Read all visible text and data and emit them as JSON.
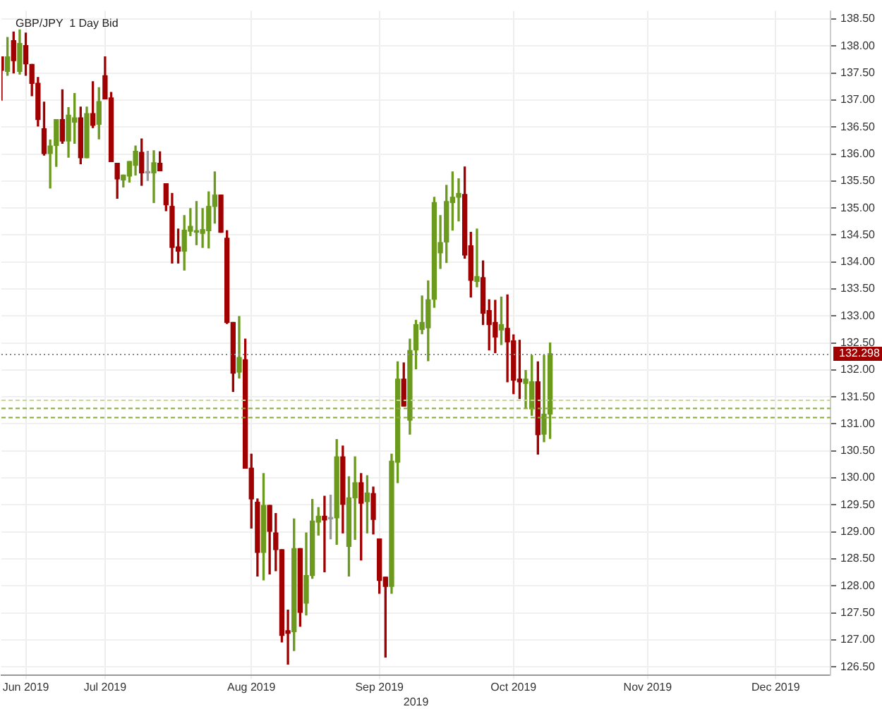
{
  "chart_data": {
    "type": "candlestick",
    "title": "GBP/JPY  1 Day Bid",
    "xlabel": "2019",
    "categories": [
      null,
      null,
      null,
      null,
      "Jun 2019",
      null,
      null,
      null,
      null,
      null,
      null,
      null,
      null,
      null,
      null,
      null,
      null,
      "Jul 2019",
      null,
      null,
      null,
      null,
      null,
      null,
      null,
      null,
      null,
      null,
      null,
      null,
      null,
      null,
      null,
      null,
      null,
      null,
      null,
      null,
      null,
      null,
      null,
      "Aug 2019",
      null,
      null,
      null,
      null,
      null,
      null,
      null,
      null,
      null,
      null,
      null,
      null,
      null,
      null,
      null,
      null,
      null,
      null,
      null,
      null,
      "Sep 2019",
      null,
      null,
      null,
      null,
      null,
      null,
      null,
      null,
      null,
      null,
      null,
      null,
      null,
      null,
      null,
      null,
      null,
      null,
      null,
      null,
      null,
      "Oct 2019",
      null,
      null,
      null,
      null,
      null,
      null,
      null,
      null,
      null,
      null,
      null,
      null,
      null,
      null,
      null,
      null,
      null,
      null,
      null,
      null,
      null,
      "Nov 2019",
      null,
      null,
      null,
      null,
      null,
      null,
      null,
      null,
      null,
      null,
      null,
      null,
      null,
      null,
      null,
      null,
      null,
      null,
      null,
      null,
      "Dec 2019",
      null,
      null,
      null,
      null,
      null,
      null,
      null,
      null,
      null
    ],
    "ohlc": [
      [
        137.8,
        137.8,
        137.0,
        137.55
      ],
      [
        137.53,
        138.16,
        137.46,
        137.8
      ],
      [
        138.1,
        138.26,
        137.5,
        137.73
      ],
      [
        137.53,
        138.3,
        137.48,
        138.05
      ],
      [
        138.01,
        138.24,
        137.46,
        137.67
      ],
      [
        137.66,
        137.66,
        137.08,
        137.31
      ],
      [
        137.31,
        137.42,
        136.52,
        136.64
      ],
      [
        136.47,
        136.96,
        135.98,
        136.01
      ],
      [
        136.01,
        136.26,
        135.37,
        136.15
      ],
      [
        136.16,
        136.64,
        135.77,
        136.64
      ],
      [
        136.64,
        137.19,
        136.2,
        136.24
      ],
      [
        136.24,
        136.86,
        135.94,
        136.72
      ],
      [
        136.59,
        137.12,
        136.2,
        136.67
      ],
      [
        136.67,
        136.87,
        135.82,
        135.93
      ],
      [
        135.93,
        136.87,
        135.93,
        136.75
      ],
      [
        136.75,
        137.34,
        136.49,
        136.53
      ],
      [
        136.55,
        137.23,
        136.28,
        136.97
      ],
      [
        137.45,
        137.8,
        137.02,
        137.02
      ],
      [
        137.04,
        137.14,
        135.86,
        135.86
      ],
      [
        135.83,
        135.83,
        135.18,
        135.54
      ],
      [
        135.52,
        135.61,
        135.39,
        135.61
      ],
      [
        135.59,
        135.86,
        135.48,
        135.86
      ],
      [
        135.79,
        136.15,
        135.61,
        136.05
      ],
      [
        136.03,
        136.28,
        135.42,
        135.65
      ],
      [
        135.65,
        136.05,
        135.51,
        135.65
      ],
      [
        135.65,
        136.06,
        135.1,
        135.84
      ],
      [
        135.83,
        136.04,
        135.69,
        135.69
      ],
      [
        135.45,
        135.45,
        134.95,
        135.06
      ],
      [
        135.03,
        135.27,
        133.98,
        134.27
      ],
      [
        134.28,
        134.61,
        133.98,
        134.2
      ],
      [
        134.2,
        134.86,
        133.85,
        134.59
      ],
      [
        134.57,
        134.99,
        134.49,
        134.66
      ],
      [
        134.55,
        135.12,
        134.32,
        134.58
      ],
      [
        134.53,
        134.99,
        134.27,
        134.6
      ],
      [
        134.58,
        135.3,
        134.26,
        135.03
      ],
      [
        135.03,
        135.67,
        134.72,
        135.24
      ],
      [
        135.24,
        135.24,
        134.55,
        134.55
      ],
      [
        134.44,
        134.58,
        132.86,
        132.88
      ],
      [
        132.88,
        132.88,
        131.6,
        131.94
      ],
      [
        131.96,
        132.99,
        131.85,
        132.23
      ],
      [
        132.19,
        132.57,
        130.18,
        130.18
      ],
      [
        130.18,
        130.44,
        129.07,
        129.61
      ],
      [
        129.55,
        129.61,
        128.18,
        128.62
      ],
      [
        128.62,
        130.08,
        128.11,
        129.49
      ],
      [
        129.49,
        129.49,
        128.22,
        129.01
      ],
      [
        128.98,
        129.34,
        128.28,
        128.67
      ],
      [
        128.67,
        128.67,
        126.96,
        127.08
      ],
      [
        127.17,
        127.55,
        126.55,
        127.12
      ],
      [
        127.15,
        129.24,
        126.8,
        128.69
      ],
      [
        128.69,
        128.69,
        127.25,
        127.51
      ],
      [
        127.68,
        128.98,
        127.46,
        128.19
      ],
      [
        128.19,
        129.6,
        128.14,
        129.2
      ],
      [
        129.18,
        129.45,
        128.94,
        129.29
      ],
      [
        129.29,
        129.66,
        128.26,
        129.22
      ],
      [
        129.24,
        129.68,
        128.87,
        129.24
      ],
      [
        129.26,
        130.71,
        128.77,
        130.39
      ],
      [
        130.39,
        130.59,
        128.98,
        129.51
      ],
      [
        128.73,
        130.02,
        128.18,
        129.63
      ],
      [
        129.63,
        130.39,
        128.86,
        129.91
      ],
      [
        129.91,
        130.08,
        128.48,
        129.53
      ],
      [
        129.56,
        130.04,
        128.98,
        129.72
      ],
      [
        129.71,
        129.83,
        128.96,
        129.23
      ],
      [
        128.87,
        128.87,
        127.86,
        128.1
      ],
      [
        128.16,
        128.16,
        126.68,
        127.99
      ],
      [
        127.99,
        130.44,
        127.86,
        130.31
      ],
      [
        130.29,
        132.15,
        129.91,
        131.83
      ],
      [
        131.83,
        132.13,
        131.33,
        131.33
      ],
      [
        131.07,
        132.57,
        130.81,
        132.36
      ],
      [
        132.37,
        132.92,
        132.02,
        132.84
      ],
      [
        132.75,
        133.37,
        132.67,
        132.88
      ],
      [
        132.78,
        133.65,
        132.17,
        133.3
      ],
      [
        133.31,
        135.2,
        133.16,
        135.1
      ],
      [
        134.17,
        134.86,
        133.88,
        134.36
      ],
      [
        134.37,
        135.42,
        133.99,
        135.12
      ],
      [
        135.1,
        135.67,
        134.59,
        135.2
      ],
      [
        135.2,
        135.54,
        134.76,
        135.27
      ],
      [
        135.25,
        135.76,
        134.07,
        134.13
      ],
      [
        134.3,
        134.55,
        133.35,
        133.66
      ],
      [
        133.64,
        134.61,
        133.54,
        133.73
      ],
      [
        133.71,
        134.02,
        132.84,
        133.05
      ],
      [
        133.1,
        133.3,
        132.37,
        132.84
      ],
      [
        132.88,
        133.29,
        132.32,
        132.61
      ],
      [
        132.74,
        133.35,
        132.47,
        132.84
      ],
      [
        132.77,
        133.39,
        131.78,
        132.52
      ],
      [
        132.54,
        132.65,
        131.56,
        131.81
      ],
      [
        131.83,
        132.55,
        131.47,
        131.78
      ],
      [
        131.75,
        131.99,
        131.29,
        131.83
      ],
      [
        131.28,
        132.27,
        131.16,
        131.78
      ],
      [
        131.78,
        132.15,
        130.44,
        130.8
      ],
      [
        130.81,
        132.27,
        130.67,
        131.18
      ],
      [
        131.18,
        132.5,
        130.73,
        132.3
      ],
      null,
      null,
      null,
      null,
      null,
      null,
      null,
      null,
      null,
      null,
      null,
      null,
      null,
      null,
      null,
      null,
      null,
      null,
      null,
      null,
      null,
      null,
      null,
      null,
      null,
      null,
      null,
      null,
      null,
      null,
      null,
      null,
      null,
      null,
      null,
      null,
      null,
      null,
      null,
      null,
      null,
      null,
      null,
      null,
      null,
      null
    ],
    "colors": [
      "#a00000",
      "#6b9a1e",
      "#a00000",
      "#6b9a1e",
      "#a00000",
      "#a00000",
      "#a00000",
      "#a00000",
      "#6b9a1e",
      "#6b9a1e",
      "#a00000",
      "#6b9a1e",
      "#6b9a1e",
      "#a00000",
      "#6b9a1e",
      "#a00000",
      "#6b9a1e",
      "#a00000",
      "#a00000",
      "#a00000",
      "#6b9a1e",
      "#6b9a1e",
      "#6b9a1e",
      "#a00000",
      "#999999",
      "#6b9a1e",
      "#a00000",
      "#a00000",
      "#a00000",
      "#a00000",
      "#6b9a1e",
      "#6b9a1e",
      "#6b9a1e",
      "#6b9a1e",
      "#6b9a1e",
      "#6b9a1e",
      "#a00000",
      "#a00000",
      "#a00000",
      "#6b9a1e",
      "#a00000",
      "#a00000",
      "#a00000",
      "#6b9a1e",
      "#a00000",
      "#a00000",
      "#a00000",
      "#a00000",
      "#6b9a1e",
      "#a00000",
      "#6b9a1e",
      "#6b9a1e",
      "#6b9a1e",
      "#a00000",
      "#999999",
      "#6b9a1e",
      "#a00000",
      "#6b9a1e",
      "#6b9a1e",
      "#a00000",
      "#6b9a1e",
      "#a00000",
      "#a00000",
      "#a00000",
      "#6b9a1e",
      "#6b9a1e",
      "#a00000",
      "#6b9a1e",
      "#6b9a1e",
      "#6b9a1e",
      "#6b9a1e",
      "#6b9a1e",
      "#6b9a1e",
      "#6b9a1e",
      "#6b9a1e",
      "#6b9a1e",
      "#a00000",
      "#a00000",
      "#6b9a1e",
      "#a00000",
      "#a00000",
      "#a00000",
      "#6b9a1e",
      "#a00000",
      "#a00000",
      "#a00000",
      "#6b9a1e",
      "#6b9a1e",
      "#a00000",
      "#6b9a1e",
      "#6b9a1e",
      null,
      null,
      null,
      null,
      null,
      null,
      null,
      null,
      null,
      null,
      null,
      null,
      null,
      null,
      null,
      null,
      null,
      null,
      null,
      null,
      null,
      null,
      null,
      null,
      null,
      null,
      null,
      null,
      null,
      null,
      null,
      null,
      null,
      null,
      null,
      null,
      null,
      null,
      null,
      null,
      null,
      null,
      null,
      null,
      null,
      null
    ],
    "ylim": [
      126.35,
      138.65
    ],
    "yticks": [
      {
        "value": 126.5,
        "label": "126.50"
      },
      {
        "value": 127,
        "label": "127.00"
      },
      {
        "value": 127.5,
        "label": "127.50"
      },
      {
        "value": 128,
        "label": "128.00"
      },
      {
        "value": 128.5,
        "label": "128.50"
      },
      {
        "value": 129,
        "label": "129.00"
      },
      {
        "value": 129.5,
        "label": "129.50"
      },
      {
        "value": 130,
        "label": "130.00"
      },
      {
        "value": 130.5,
        "label": "130.50"
      },
      {
        "value": 131,
        "label": "131.00"
      },
      {
        "value": 131.5,
        "label": "131.50"
      },
      {
        "value": 132,
        "label": "132.00"
      },
      {
        "value": 132.5,
        "label": "132.50"
      },
      {
        "value": 133,
        "label": "133.00"
      },
      {
        "value": 133.5,
        "label": "133.50"
      },
      {
        "value": 134,
        "label": "134.00"
      },
      {
        "value": 134.5,
        "label": "134.50"
      },
      {
        "value": 135,
        "label": "135.00"
      },
      {
        "value": 135.5,
        "label": "135.50"
      },
      {
        "value": 136,
        "label": "136.00"
      },
      {
        "value": 136.5,
        "label": "136.50"
      },
      {
        "value": 137,
        "label": "137.00"
      },
      {
        "value": 137.5,
        "label": "137.50"
      },
      {
        "value": 138,
        "label": "138.00"
      },
      {
        "value": 138.5,
        "label": "138.50"
      }
    ],
    "grid": true,
    "ref_lines": [
      {
        "axis": "y",
        "value": 132.298,
        "label": "132.298",
        "color": "#888888",
        "line_style": "dotted"
      },
      {
        "axis": "y",
        "value": 131.45,
        "color": "#c5d89a",
        "line_style": "dashed"
      },
      {
        "axis": "y",
        "value": 131.3,
        "color": "#8aaa3c",
        "line_style": "dashed"
      },
      {
        "axis": "y",
        "value": 131.13,
        "color": "#8aaa3c",
        "line_style": "dashed"
      }
    ]
  }
}
